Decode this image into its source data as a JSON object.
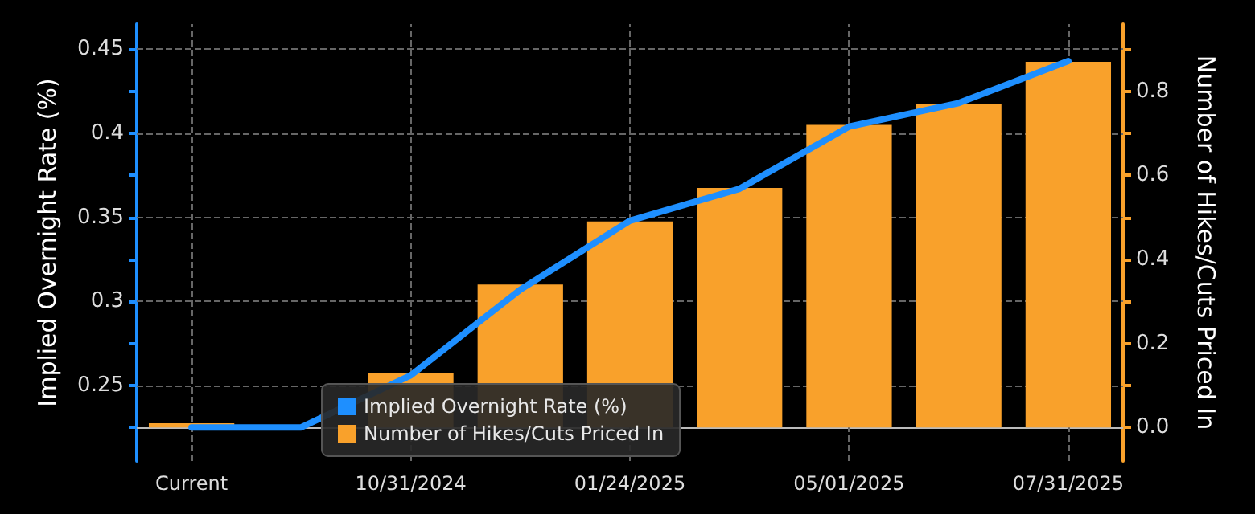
{
  "chart_data": {
    "type": "bar",
    "ylabel": "Implied Overnight Rate (%)",
    "y2label": "Number of Hikes/Cuts Priced In",
    "categories": [
      "Current",
      null,
      "10/31/2024",
      null,
      "01/24/2025",
      null,
      "05/01/2025",
      null,
      "07/31/2025"
    ],
    "series": [
      {
        "name": "Implied Overnight Rate (%)",
        "type": "line",
        "color": "#1e8fff",
        "values": [
          0.225,
          0.225,
          0.256,
          0.307,
          0.348,
          0.367,
          0.404,
          0.418,
          0.443
        ]
      },
      {
        "name": "Number of Hikes/Cuts Priced In",
        "axis": "y2",
        "color": "#f9a12b",
        "values": [
          0.01,
          null,
          0.13,
          0.34,
          0.49,
          0.57,
          0.72,
          0.77,
          0.87
        ]
      }
    ],
    "ylim": [
      0.205,
      0.465
    ],
    "yticks": [
      {
        "value": 0.225,
        "label": null
      },
      0.25,
      {
        "value": 0.275,
        "label": null
      },
      0.3,
      {
        "value": 0.325,
        "label": null
      },
      0.35,
      {
        "value": 0.375,
        "label": null
      },
      0.4,
      {
        "value": 0.425,
        "label": null
      },
      0.45
    ],
    "y2lim": [
      -0.08,
      0.96
    ],
    "y2ticks": [
      {
        "value": 0,
        "label": "0.0"
      },
      {
        "value": 0.1,
        "label": null
      },
      0.2,
      {
        "value": 0.3,
        "label": null
      },
      0.4,
      {
        "value": 0.5,
        "label": null
      },
      0.6,
      {
        "value": 0.7,
        "label": null
      },
      0.8,
      {
        "value": 0.9,
        "label": null
      }
    ],
    "grid": true,
    "legend": "bottom left",
    "line_style": "solid",
    "marker": "none"
  }
}
